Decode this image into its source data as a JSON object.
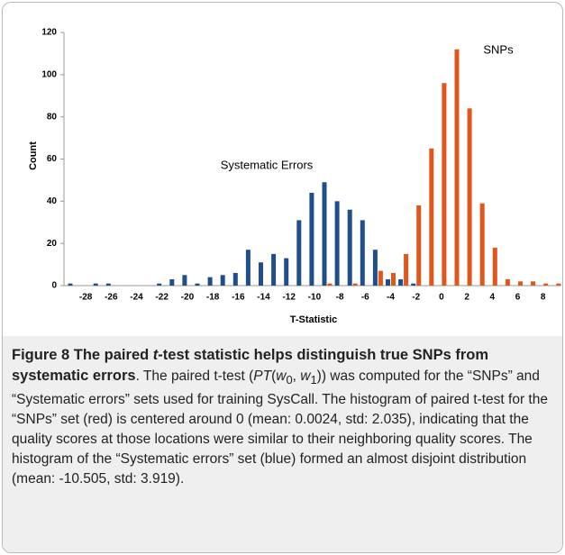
{
  "chart_data": {
    "type": "bar",
    "x_label": "T-Statistic",
    "y_label": "Count",
    "annotations": [
      "SNPs",
      "Systematic Errors"
    ],
    "categories": [
      null,
      -28,
      null,
      -26,
      null,
      -24,
      null,
      -22,
      null,
      -20,
      null,
      -18,
      null,
      -16,
      null,
      -14,
      null,
      -12,
      null,
      -10,
      null,
      -8,
      null,
      -6,
      null,
      -4,
      null,
      -2,
      null,
      0,
      null,
      2,
      null,
      4,
      null,
      6,
      null,
      8,
      null
    ],
    "series": [
      {
        "name": "Systematic Errors",
        "color": "#1f4e8c",
        "values": [
          1,
          0,
          1,
          1,
          0,
          0,
          0,
          1,
          3,
          5,
          1,
          4,
          5,
          6,
          17,
          11,
          15,
          13,
          31,
          44,
          49,
          40,
          36,
          31,
          17,
          3,
          3,
          1,
          0,
          0,
          0,
          0,
          0,
          0,
          0,
          0,
          0,
          0,
          0
        ]
      },
      {
        "name": "SNPs",
        "color": "#e0561b",
        "values": [
          0,
          0,
          0,
          0,
          0,
          0,
          0,
          0,
          0,
          0,
          0,
          0,
          0,
          0,
          0,
          0,
          0,
          0,
          0,
          0,
          1,
          0,
          1,
          0,
          7,
          6,
          15,
          38,
          65,
          96,
          112,
          84,
          39,
          18,
          3,
          2,
          2,
          1,
          1
        ]
      }
    ],
    "ylim": [
      0,
      120
    ],
    "yticks": [
      0,
      20,
      40,
      60,
      80,
      100,
      120
    ]
  },
  "caption": {
    "title": [
      "Figure 8 The paired ",
      "t",
      "-test statistic helps distinguish true SNPs from systematic errors"
    ],
    "body": [
      ". The paired t-test (",
      "PT",
      "(",
      "w",
      "0",
      ", ",
      "w",
      "1",
      ")) was computed for the “SNPs” and “Systematic errors” sets used for training SysCall. The histogram of paired t-test for the “SNPs” set (red) is centered around 0 (mean: 0.0024, std: 2.035), indicating that the quality scores at those locations were similar to their neighboring quality scores. The histogram of the “Systematic errors” set (blue) formed an almost disjoint distribution (mean: -10.505, std: 3.919)."
    ]
  }
}
